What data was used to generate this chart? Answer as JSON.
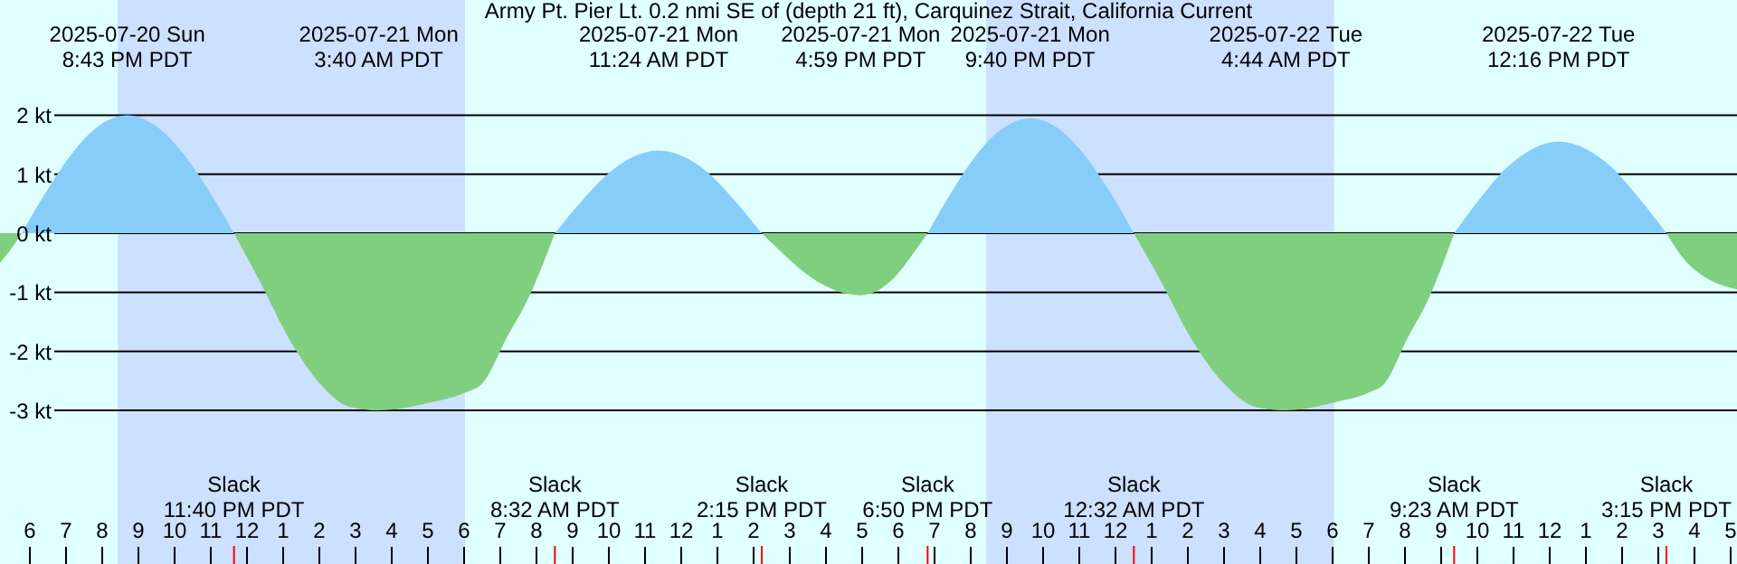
{
  "chart_data": {
    "type": "area",
    "title": "Army Pt. Pier Lt. 0.2 nmi SE of (depth 21 ft), Carquinez Strait, California Current",
    "series": [
      {
        "color": "#7fcf7f",
        "x": [
          "2025-07-20T17:12",
          "2025-07-20T17:30",
          "2025-07-20T17:48"
        ],
        "values": [
          -0.5,
          -0.27,
          0
        ]
      },
      {
        "color": "#87cdfa",
        "x": [
          "2025-07-20T17:48",
          "2025-07-20T18:32",
          "2025-07-20T19:16",
          "2025-07-20T19:59",
          "2025-07-20T20:43",
          "2025-07-20T21:27",
          "2025-07-20T22:11",
          "2025-07-20T22:56",
          "2025-07-20T23:40"
        ],
        "values": [
          0,
          0.76,
          1.41,
          1.84,
          2.0,
          1.84,
          1.41,
          0.76,
          0
        ]
      },
      {
        "color": "#7fcf7f",
        "x": [
          "2025-07-20T23:40",
          "2025-07-21T00:22",
          "2025-07-21T01:12",
          "2025-07-21T02:02",
          "2025-07-21T02:52",
          "2025-07-21T03:40",
          "2025-07-21T05:12",
          "2025-07-21T06:03",
          "2025-07-21T06:32",
          "2025-07-21T07:12",
          "2025-07-21T07:48",
          "2025-07-21T08:32"
        ],
        "values": [
          0,
          -0.8,
          -1.8,
          -2.54,
          -2.94,
          -3.0,
          -2.85,
          -2.7,
          -2.54,
          -1.77,
          -1.1,
          0
        ]
      },
      {
        "color": "#87cdfa",
        "x": [
          "2025-07-21T08:32",
          "2025-07-21T09:15",
          "2025-07-21T09:58",
          "2025-07-21T10:41",
          "2025-07-21T11:24",
          "2025-07-21T12:07",
          "2025-07-21T12:50",
          "2025-07-21T13:32",
          "2025-07-21T14:15"
        ],
        "values": [
          0,
          0.53,
          0.99,
          1.29,
          1.4,
          1.29,
          0.99,
          0.53,
          0
        ]
      },
      {
        "color": "#7fcf7f",
        "x": [
          "2025-07-21T14:15",
          "2025-07-21T14:56",
          "2025-07-21T15:37",
          "2025-07-21T16:18",
          "2025-07-21T16:59",
          "2025-07-21T17:27",
          "2025-07-21T17:55",
          "2025-07-21T18:22",
          "2025-07-21T18:50"
        ],
        "values": [
          0,
          -0.4,
          -0.75,
          -0.97,
          -1.05,
          -0.97,
          -0.75,
          -0.4,
          0
        ]
      },
      {
        "color": "#87cdfa",
        "x": [
          "2025-07-21T18:50",
          "2025-07-21T19:33",
          "2025-07-21T20:15",
          "2025-07-21T20:58",
          "2025-07-21T21:40",
          "2025-07-21T22:23",
          "2025-07-21T23:06",
          "2025-07-21T23:49",
          "2025-07-22T00:32"
        ],
        "values": [
          0,
          0.75,
          1.38,
          1.8,
          1.95,
          1.8,
          1.38,
          0.75,
          0
        ]
      },
      {
        "color": "#7fcf7f",
        "x": [
          "2025-07-22T00:32",
          "2025-07-22T01:16",
          "2025-07-22T02:08",
          "2025-07-22T03:01",
          "2025-07-22T03:54",
          "2025-07-22T04:44",
          "2025-07-22T06:10",
          "2025-07-22T07:01",
          "2025-07-22T07:28",
          "2025-07-22T08:06",
          "2025-07-22T08:41",
          "2025-07-22T09:23"
        ],
        "values": [
          0,
          -0.8,
          -1.8,
          -2.54,
          -2.94,
          -3.0,
          -2.85,
          -2.7,
          -2.54,
          -1.77,
          -1.1,
          0
        ]
      },
      {
        "color": "#87cdfa",
        "x": [
          "2025-07-22T09:23",
          "2025-07-22T10:06",
          "2025-07-22T10:49",
          "2025-07-22T11:33",
          "2025-07-22T12:16",
          "2025-07-22T13:01",
          "2025-07-22T13:46",
          "2025-07-22T14:30",
          "2025-07-22T15:15"
        ],
        "values": [
          0,
          0.59,
          1.1,
          1.43,
          1.55,
          1.43,
          1.1,
          0.59,
          0
        ]
      },
      {
        "color": "#7fcf7f",
        "x": [
          "2025-07-22T15:15",
          "2025-07-22T15:45",
          "2025-07-22T16:20",
          "2025-07-22T17:12"
        ],
        "values": [
          0,
          -0.45,
          -0.75,
          -0.95
        ]
      }
    ],
    "xlim": [
      "2025-07-20T17:12",
      "2025-07-22T17:12"
    ],
    "xticks": [
      {
        "value": "2025-07-20T18:00",
        "label": "6"
      },
      {
        "value": "2025-07-20T19:00",
        "label": "7"
      },
      {
        "value": "2025-07-20T20:00",
        "label": "8"
      },
      {
        "value": "2025-07-20T21:00",
        "label": "9"
      },
      {
        "value": "2025-07-20T22:00",
        "label": "10"
      },
      {
        "value": "2025-07-20T23:00",
        "label": "11"
      },
      {
        "value": "2025-07-21T00:00",
        "label": "12"
      },
      {
        "value": "2025-07-21T01:00",
        "label": "1"
      },
      {
        "value": "2025-07-21T02:00",
        "label": "2"
      },
      {
        "value": "2025-07-21T03:00",
        "label": "3"
      },
      {
        "value": "2025-07-21T04:00",
        "label": "4"
      },
      {
        "value": "2025-07-21T05:00",
        "label": "5"
      },
      {
        "value": "2025-07-21T06:00",
        "label": "6"
      },
      {
        "value": "2025-07-21T07:00",
        "label": "7"
      },
      {
        "value": "2025-07-21T08:00",
        "label": "8"
      },
      {
        "value": "2025-07-21T09:00",
        "label": "9"
      },
      {
        "value": "2025-07-21T10:00",
        "label": "10"
      },
      {
        "value": "2025-07-21T11:00",
        "label": "11"
      },
      {
        "value": "2025-07-21T12:00",
        "label": "12"
      },
      {
        "value": "2025-07-21T13:00",
        "label": "1"
      },
      {
        "value": "2025-07-21T14:00",
        "label": "2"
      },
      {
        "value": "2025-07-21T15:00",
        "label": "3"
      },
      {
        "value": "2025-07-21T16:00",
        "label": "4"
      },
      {
        "value": "2025-07-21T17:00",
        "label": "5"
      },
      {
        "value": "2025-07-21T18:00",
        "label": "6"
      },
      {
        "value": "2025-07-21T19:00",
        "label": "7"
      },
      {
        "value": "2025-07-21T20:00",
        "label": "8"
      },
      {
        "value": "2025-07-21T21:00",
        "label": "9"
      },
      {
        "value": "2025-07-21T22:00",
        "label": "10"
      },
      {
        "value": "2025-07-21T23:00",
        "label": "11"
      },
      {
        "value": "2025-07-22T00:00",
        "label": "12"
      },
      {
        "value": "2025-07-22T01:00",
        "label": "1"
      },
      {
        "value": "2025-07-22T02:00",
        "label": "2"
      },
      {
        "value": "2025-07-22T03:00",
        "label": "3"
      },
      {
        "value": "2025-07-22T04:00",
        "label": "4"
      },
      {
        "value": "2025-07-22T05:00",
        "label": "5"
      },
      {
        "value": "2025-07-22T06:00",
        "label": "6"
      },
      {
        "value": "2025-07-22T07:00",
        "label": "7"
      },
      {
        "value": "2025-07-22T08:00",
        "label": "8"
      },
      {
        "value": "2025-07-22T09:00",
        "label": "9"
      },
      {
        "value": "2025-07-22T10:00",
        "label": "10"
      },
      {
        "value": "2025-07-22T11:00",
        "label": "11"
      },
      {
        "value": "2025-07-22T12:00",
        "label": "12"
      },
      {
        "value": "2025-07-22T13:00",
        "label": "1"
      },
      {
        "value": "2025-07-22T14:00",
        "label": "2"
      },
      {
        "value": "2025-07-22T15:00",
        "label": "3"
      },
      {
        "value": "2025-07-22T16:00",
        "label": "4"
      },
      {
        "value": "2025-07-22T17:00",
        "label": "5"
      }
    ],
    "ylim": [
      -5.6,
      3.95
    ],
    "yticks": [
      {
        "value": 2,
        "label": "2 kt"
      },
      {
        "value": 1,
        "label": "1 kt"
      },
      {
        "value": 0,
        "label": "0 kt"
      },
      {
        "value": -1,
        "label": "-1 kt"
      },
      {
        "value": -2,
        "label": "-2 kt"
      },
      {
        "value": -3,
        "label": "-3 kt"
      }
    ],
    "grid": "y",
    "bands": [
      {
        "axis": "x",
        "from": "2025-07-20T20:27",
        "to": "2025-07-21T06:03",
        "color": "#cce0ff"
      },
      {
        "axis": "x",
        "from": "2025-07-21T20:27",
        "to": "2025-07-22T06:04",
        "color": "#cce0ff"
      }
    ],
    "annotations": [
      "2025-07-20 Sun\n8:43 PM PDT",
      "2025-07-21 Mon\n3:40 AM PDT",
      "2025-07-21 Mon\n11:24 AM PDT",
      "2025-07-21 Mon\n4:59 PM PDT",
      "2025-07-21 Mon\n9:40 PM PDT",
      "2025-07-22 Tue\n4:44 AM PDT",
      "2025-07-22 Tue\n12:16 PM PDT",
      "Slack\n11:40 PM PDT",
      "Slack\n8:32 AM PDT",
      "Slack\n2:15 PM PDT",
      "Slack\n6:50 PM PDT",
      "Slack\n12:32 AM PDT",
      "Slack\n9:23 AM PDT",
      "Slack\n3:15 PM PDT"
    ]
  }
}
